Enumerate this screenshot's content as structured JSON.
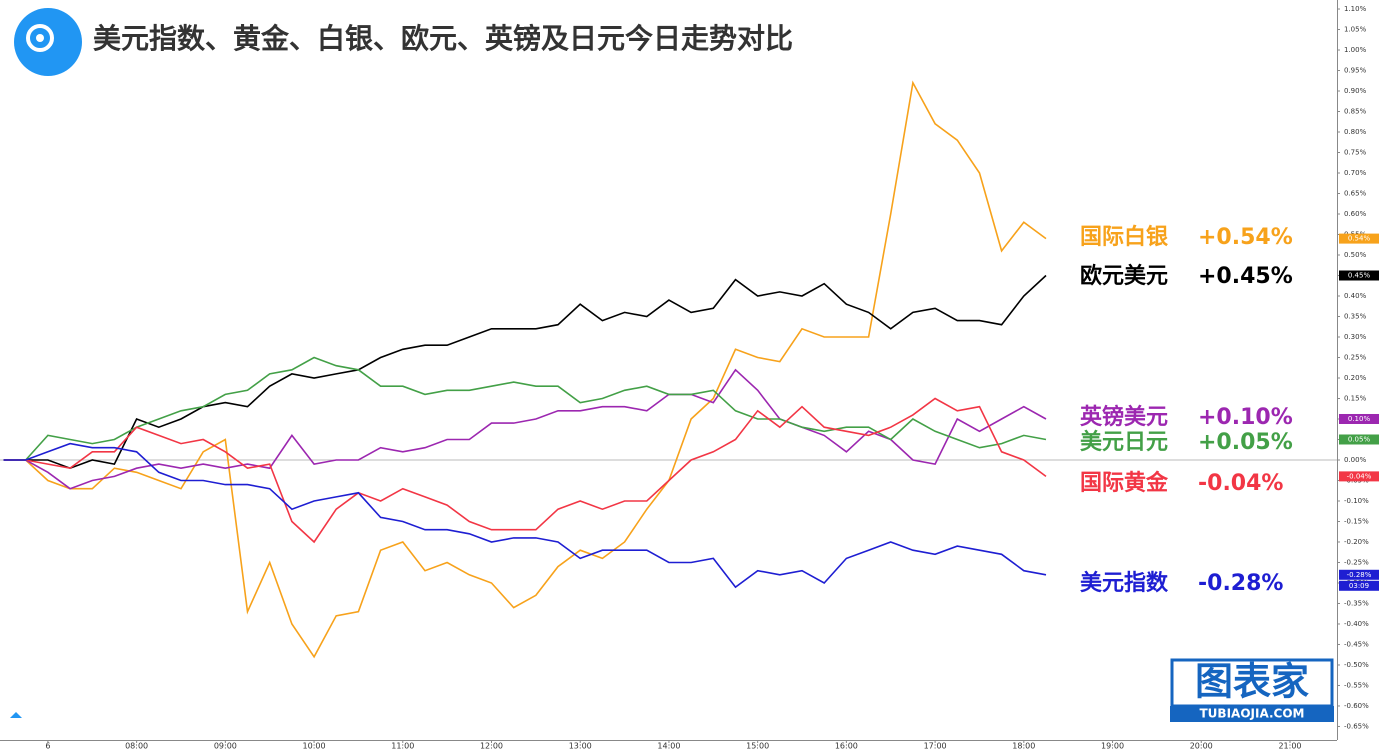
{
  "chart_data": {
    "type": "line",
    "title": "美元指数、黄金、白银、欧元、英镑及日元今日走势对比",
    "logo_text": "图表家",
    "logo_subtext": "TUBIAOJIA.COM",
    "time_label": "03:09",
    "xlim": [
      6.46,
      21.53
    ],
    "ylim": [
      -0.683,
      1.122
    ],
    "xticks": [
      {
        "value": 7,
        "label": "6"
      },
      {
        "value": 8,
        "label": "08:00"
      },
      {
        "value": 9,
        "label": "09:00"
      },
      {
        "value": 10,
        "label": "10:00"
      },
      {
        "value": 11,
        "label": "11:00"
      },
      {
        "value": 12,
        "label": "12:00"
      },
      {
        "value": 13,
        "label": "13:00"
      },
      {
        "value": 14,
        "label": "14:00"
      },
      {
        "value": 15,
        "label": "15:00"
      },
      {
        "value": 16,
        "label": "16:00"
      },
      {
        "value": 17,
        "label": "17:00"
      },
      {
        "value": 18,
        "label": "18:00"
      },
      {
        "value": 19,
        "label": "19:00"
      },
      {
        "value": 20,
        "label": "20:00"
      },
      {
        "value": 21,
        "label": "21:00"
      }
    ],
    "yticks": [
      {
        "value": 1.1,
        "label": "1.10%"
      },
      {
        "value": 1.05,
        "label": "1.05%"
      },
      {
        "value": 1.0,
        "label": "1.00%"
      },
      {
        "value": 0.95,
        "label": "0.95%"
      },
      {
        "value": 0.9,
        "label": "0.90%"
      },
      {
        "value": 0.85,
        "label": "0.85%"
      },
      {
        "value": 0.8,
        "label": "0.80%"
      },
      {
        "value": 0.75,
        "label": "0.75%"
      },
      {
        "value": 0.7,
        "label": "0.70%"
      },
      {
        "value": 0.65,
        "label": "0.65%"
      },
      {
        "value": 0.6,
        "label": "0.60%"
      },
      {
        "value": 0.55,
        "label": "0.55%"
      },
      {
        "value": 0.5,
        "label": "0.50%"
      },
      {
        "value": 0.45,
        "label": "0.45%"
      },
      {
        "value": 0.4,
        "label": "0.40%"
      },
      {
        "value": 0.35,
        "label": "0.35%"
      },
      {
        "value": 0.3,
        "label": "0.30%"
      },
      {
        "value": 0.25,
        "label": "0.25%"
      },
      {
        "value": 0.2,
        "label": "0.20%"
      },
      {
        "value": 0.15,
        "label": "0.15%"
      },
      {
        "value": 0.1,
        "label": "0.10%"
      },
      {
        "value": 0.05,
        "label": "0.05%"
      },
      {
        "value": 0,
        "label": "0.00%"
      },
      {
        "value": -0.05,
        "label": "-0.05%"
      },
      {
        "value": -0.1,
        "label": "-0.10%"
      },
      {
        "value": -0.15,
        "label": "-0.15%"
      },
      {
        "value": -0.2,
        "label": "-0.20%"
      },
      {
        "value": -0.25,
        "label": "-0.25%"
      },
      {
        "value": -0.3,
        "label": "-0.30%"
      },
      {
        "value": -0.35,
        "label": "-0.35%"
      },
      {
        "value": -0.4,
        "label": "-0.40%"
      },
      {
        "value": -0.45,
        "label": "-0.45%"
      },
      {
        "value": -0.5,
        "label": "-0.50%"
      },
      {
        "value": -0.55,
        "label": "-0.55%"
      },
      {
        "value": -0.6,
        "label": "-0.60%"
      },
      {
        "value": -0.65,
        "label": "-0.65%"
      }
    ],
    "x": [
      6.5,
      6.75,
      7,
      7.25,
      7.5,
      7.75,
      8,
      8.25,
      8.5,
      8.75,
      9,
      9.25,
      9.5,
      9.75,
      10,
      10.25,
      10.5,
      10.75,
      11,
      11.25,
      11.5,
      11.75,
      12,
      12.25,
      12.5,
      12.75,
      13,
      13.25,
      13.5,
      13.75,
      14,
      14.25,
      14.5,
      14.75,
      15,
      15.25,
      15.5,
      15.75,
      16,
      16.25,
      16.5,
      16.75,
      17,
      17.25,
      17.5,
      17.75,
      18,
      18.25
    ],
    "series": [
      {
        "name": "国际白银",
        "change": "+0.54%",
        "last_label": "0.54%",
        "color": "#f7a21b",
        "values": [
          0,
          0,
          -0.05,
          -0.07,
          -0.07,
          -0.02,
          -0.03,
          -0.05,
          -0.07,
          0.02,
          0.05,
          -0.37,
          -0.25,
          -0.4,
          -0.48,
          -0.38,
          -0.37,
          -0.22,
          -0.2,
          -0.27,
          -0.25,
          -0.28,
          -0.3,
          -0.36,
          -0.33,
          -0.26,
          -0.22,
          -0.24,
          -0.2,
          -0.12,
          -0.05,
          0.1,
          0.15,
          0.27,
          0.25,
          0.24,
          0.32,
          0.3,
          0.3,
          0.3,
          0.6,
          0.92,
          0.82,
          0.78,
          0.7,
          0.51,
          0.58,
          0.54
        ]
      },
      {
        "name": "欧元美元",
        "change": "+0.45%",
        "last_label": "0.45%",
        "color": "#000000",
        "values": [
          0,
          0,
          0,
          -0.02,
          0,
          -0.01,
          0.1,
          0.08,
          0.1,
          0.13,
          0.14,
          0.13,
          0.18,
          0.21,
          0.2,
          0.21,
          0.22,
          0.25,
          0.27,
          0.28,
          0.28,
          0.3,
          0.32,
          0.32,
          0.32,
          0.33,
          0.38,
          0.34,
          0.36,
          0.35,
          0.39,
          0.36,
          0.37,
          0.44,
          0.4,
          0.41,
          0.4,
          0.43,
          0.38,
          0.36,
          0.32,
          0.36,
          0.37,
          0.34,
          0.34,
          0.33,
          0.4,
          0.45
        ]
      },
      {
        "name": "英镑美元",
        "change": "+0.10%",
        "last_label": "0.10%",
        "color": "#9c27b0",
        "values": [
          0,
          0,
          -0.03,
          -0.07,
          -0.05,
          -0.04,
          -0.02,
          -0.01,
          -0.02,
          -0.01,
          -0.02,
          -0.01,
          -0.02,
          0.06,
          -0.01,
          0,
          0,
          0.03,
          0.02,
          0.03,
          0.05,
          0.05,
          0.09,
          0.09,
          0.1,
          0.12,
          0.12,
          0.13,
          0.13,
          0.12,
          0.16,
          0.16,
          0.14,
          0.22,
          0.17,
          0.1,
          0.08,
          0.06,
          0.02,
          0.07,
          0.05,
          0,
          -0.01,
          0.1,
          0.07,
          0.1,
          0.13,
          0.1
        ]
      },
      {
        "name": "美元日元",
        "change": "+0.05%",
        "last_label": "0.05%",
        "color": "#43a047",
        "values": [
          0,
          0,
          0.06,
          0.05,
          0.04,
          0.05,
          0.08,
          0.1,
          0.12,
          0.13,
          0.16,
          0.17,
          0.21,
          0.22,
          0.25,
          0.23,
          0.22,
          0.18,
          0.18,
          0.16,
          0.17,
          0.17,
          0.18,
          0.19,
          0.18,
          0.18,
          0.14,
          0.15,
          0.17,
          0.18,
          0.16,
          0.16,
          0.17,
          0.12,
          0.1,
          0.1,
          0.08,
          0.07,
          0.08,
          0.08,
          0.05,
          0.1,
          0.07,
          0.05,
          0.03,
          0.04,
          0.06,
          0.05
        ]
      },
      {
        "name": "国际黄金",
        "change": "-0.04%",
        "last_label": "-0.04%",
        "color": "#f23645",
        "values": [
          0,
          0,
          -0.01,
          -0.02,
          0.02,
          0.02,
          0.08,
          0.06,
          0.04,
          0.05,
          0.02,
          -0.02,
          -0.01,
          -0.15,
          -0.2,
          -0.12,
          -0.08,
          -0.1,
          -0.07,
          -0.09,
          -0.11,
          -0.15,
          -0.17,
          -0.17,
          -0.17,
          -0.12,
          -0.1,
          -0.12,
          -0.1,
          -0.1,
          -0.05,
          0,
          0.02,
          0.05,
          0.12,
          0.08,
          0.13,
          0.08,
          0.07,
          0.06,
          0.08,
          0.11,
          0.15,
          0.12,
          0.13,
          0.02,
          0,
          -0.04
        ]
      },
      {
        "name": "美元指数",
        "change": "-0.28%",
        "last_label": "-0.28%",
        "color": "#1e1ed2",
        "values": [
          0,
          0,
          0.02,
          0.04,
          0.03,
          0.03,
          0.02,
          -0.03,
          -0.05,
          -0.05,
          -0.06,
          -0.06,
          -0.07,
          -0.12,
          -0.1,
          -0.09,
          -0.08,
          -0.14,
          -0.15,
          -0.17,
          -0.17,
          -0.18,
          -0.2,
          -0.19,
          -0.19,
          -0.2,
          -0.24,
          -0.22,
          -0.22,
          -0.22,
          -0.25,
          -0.25,
          -0.24,
          -0.31,
          -0.27,
          -0.28,
          -0.27,
          -0.3,
          -0.24,
          -0.22,
          -0.2,
          -0.22,
          -0.23,
          -0.21,
          -0.22,
          -0.23,
          -0.27,
          -0.28
        ]
      }
    ]
  }
}
